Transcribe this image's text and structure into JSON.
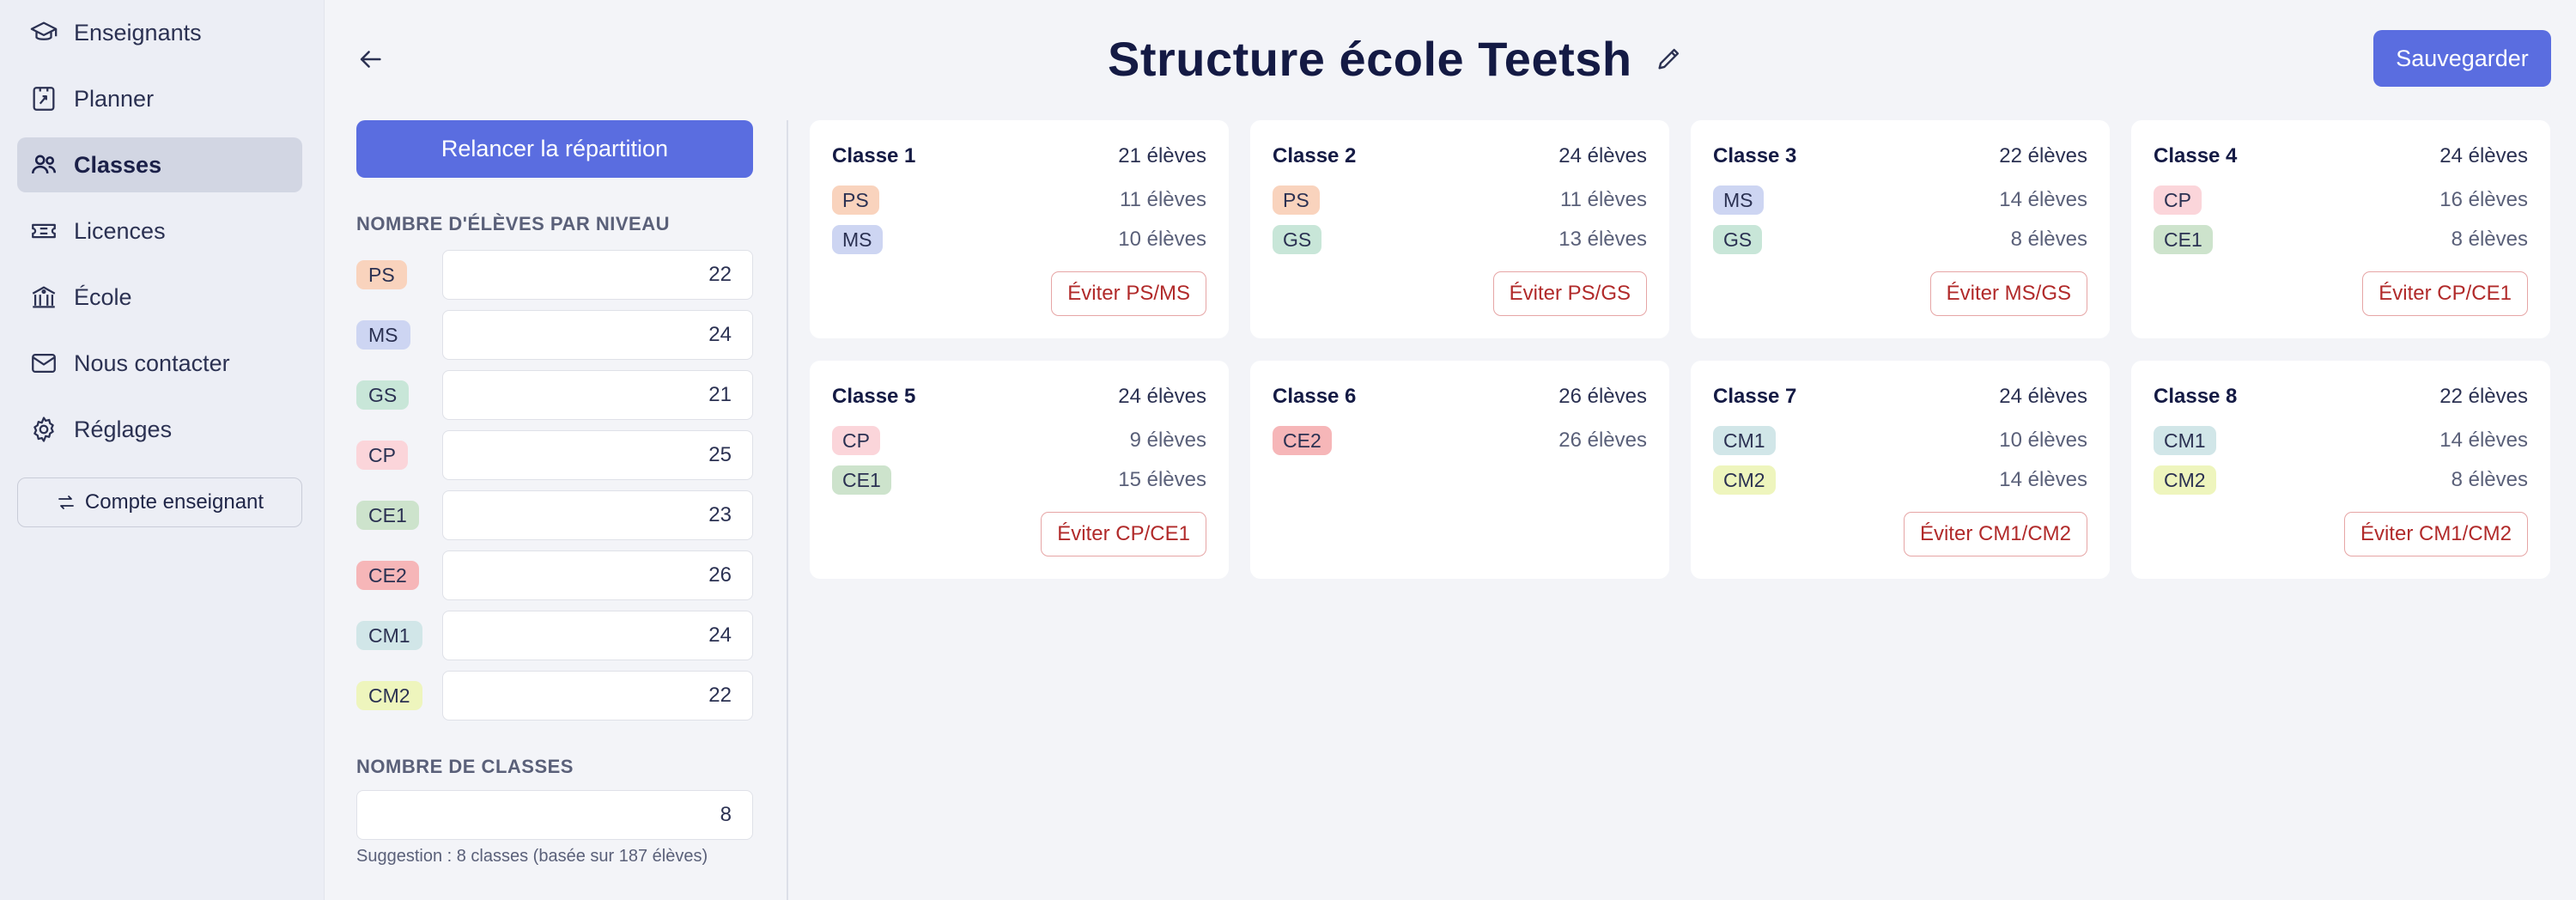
{
  "sidebar": {
    "items": [
      {
        "label": "Enseignants",
        "icon": "graduation-cap-icon"
      },
      {
        "label": "Planner",
        "icon": "planner-icon"
      },
      {
        "label": "Classes",
        "icon": "users-icon",
        "active": true
      },
      {
        "label": "Licences",
        "icon": "ticket-icon"
      },
      {
        "label": "École",
        "icon": "school-building-icon"
      },
      {
        "label": "Nous contacter",
        "icon": "mail-icon"
      },
      {
        "label": "Réglages",
        "icon": "gear-icon"
      }
    ],
    "account_button": "Compte enseignant"
  },
  "header": {
    "title": "Structure école Teetsh",
    "save_label": "Sauvegarder"
  },
  "panel": {
    "relaunch_label": "Relancer la répartition",
    "levels_title": "NOMBRE D'ÉLÈVES PAR NIVEAU",
    "levels": [
      {
        "name": "PS",
        "value": "22"
      },
      {
        "name": "MS",
        "value": "24"
      },
      {
        "name": "GS",
        "value": "21"
      },
      {
        "name": "CP",
        "value": "25"
      },
      {
        "name": "CE1",
        "value": "23"
      },
      {
        "name": "CE2",
        "value": "26"
      },
      {
        "name": "CM1",
        "value": "24"
      },
      {
        "name": "CM2",
        "value": "22"
      }
    ],
    "classes_title": "NOMBRE DE CLASSES",
    "classes_value": "8",
    "suggestion": "Suggestion : 8 classes (basée sur 187 élèves)"
  },
  "cards": [
    {
      "name": "Classe 1",
      "total": "21 élèves",
      "lines": [
        {
          "level": "PS",
          "count": "11 élèves"
        },
        {
          "level": "MS",
          "count": "10 élèves"
        }
      ],
      "avoid": "Éviter PS/MS"
    },
    {
      "name": "Classe 2",
      "total": "24 élèves",
      "lines": [
        {
          "level": "PS",
          "count": "11 élèves"
        },
        {
          "level": "GS",
          "count": "13 élèves"
        }
      ],
      "avoid": "Éviter PS/GS"
    },
    {
      "name": "Classe 3",
      "total": "22 élèves",
      "lines": [
        {
          "level": "MS",
          "count": "14 élèves"
        },
        {
          "level": "GS",
          "count": "8 élèves"
        }
      ],
      "avoid": "Éviter MS/GS"
    },
    {
      "name": "Classe 4",
      "total": "24 élèves",
      "lines": [
        {
          "level": "CP",
          "count": "16 élèves"
        },
        {
          "level": "CE1",
          "count": "8 élèves"
        }
      ],
      "avoid": "Éviter CP/CE1"
    },
    {
      "name": "Classe 5",
      "total": "24 élèves",
      "lines": [
        {
          "level": "CP",
          "count": "9 élèves"
        },
        {
          "level": "CE1",
          "count": "15 élèves"
        }
      ],
      "avoid": "Éviter CP/CE1"
    },
    {
      "name": "Classe 6",
      "total": "26 élèves",
      "lines": [
        {
          "level": "CE2",
          "count": "26 élèves"
        }
      ],
      "avoid": ""
    },
    {
      "name": "Classe 7",
      "total": "24 élèves",
      "lines": [
        {
          "level": "CM1",
          "count": "10 élèves"
        },
        {
          "level": "CM2",
          "count": "14 élèves"
        }
      ],
      "avoid": "Éviter CM1/CM2"
    },
    {
      "name": "Classe 8",
      "total": "22 élèves",
      "lines": [
        {
          "level": "CM1",
          "count": "14 élèves"
        },
        {
          "level": "CM2",
          "count": "8 élèves"
        }
      ],
      "avoid": "Éviter CM1/CM2"
    }
  ]
}
